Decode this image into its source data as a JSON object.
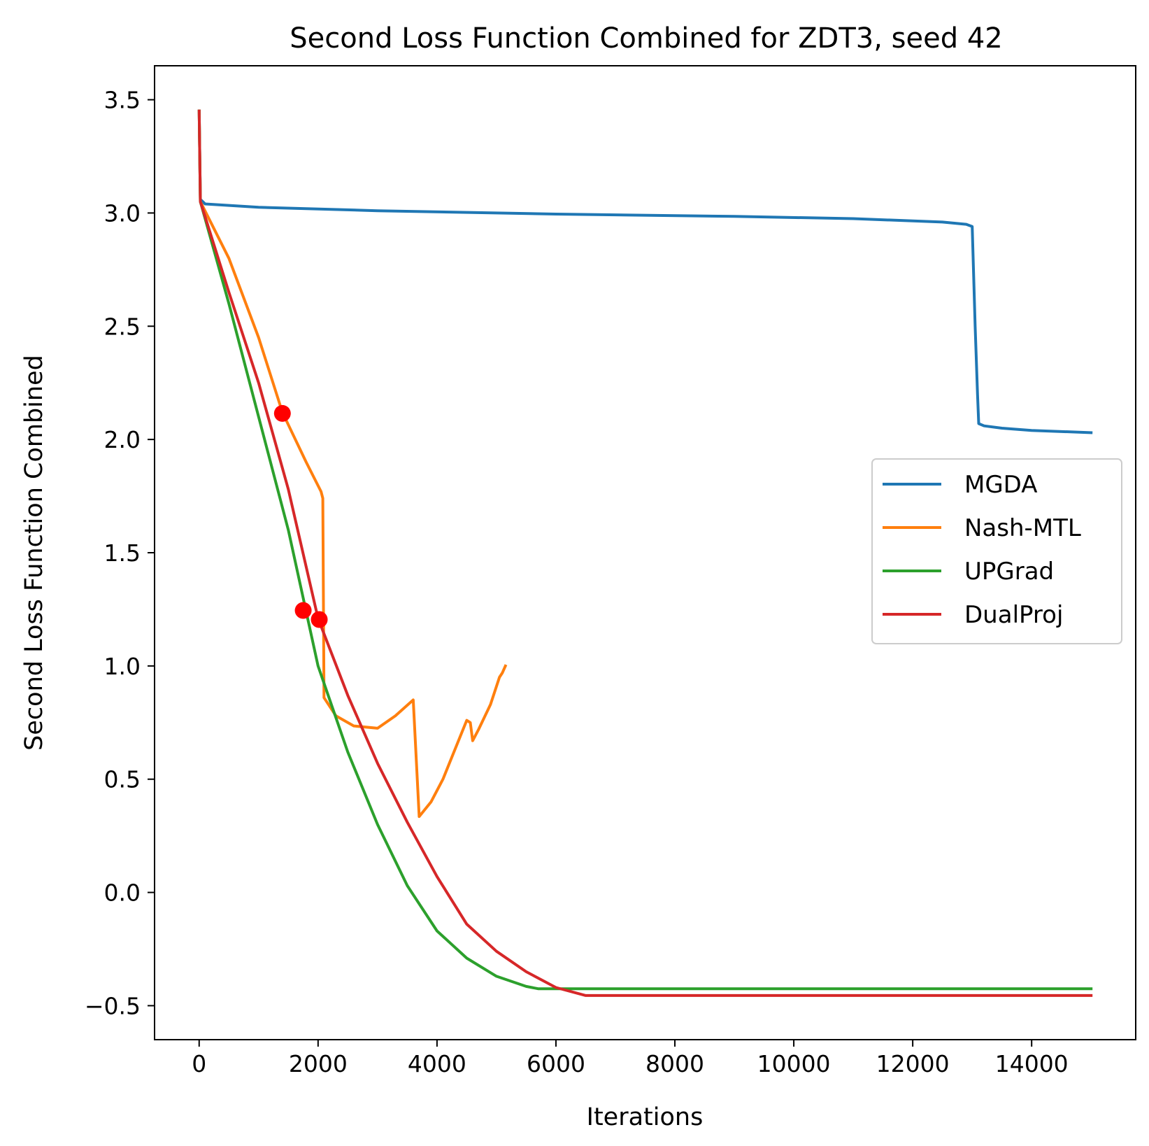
{
  "chart_data": {
    "type": "line",
    "title": "Second Loss Function Combined for ZDT3, seed 42",
    "xlabel": "Iterations",
    "ylabel": "Second Loss Function Combined",
    "xlim": [
      -750,
      15750
    ],
    "ylim": [
      -0.65,
      3.65
    ],
    "xticks": [
      {
        "value": 0,
        "label": "0"
      },
      {
        "value": 2000,
        "label": "2000"
      },
      {
        "value": 4000,
        "label": "4000"
      },
      {
        "value": 6000,
        "label": "6000"
      },
      {
        "value": 8000,
        "label": "8000"
      },
      {
        "value": 10000,
        "label": "10000"
      },
      {
        "value": 12000,
        "label": "12000"
      },
      {
        "value": 14000,
        "label": "14000"
      }
    ],
    "yticks": [
      {
        "value": -0.5,
        "label": "−0.5"
      },
      {
        "value": 0.0,
        "label": "0.0"
      },
      {
        "value": 0.5,
        "label": "0.5"
      },
      {
        "value": 1.0,
        "label": "1.0"
      },
      {
        "value": 1.5,
        "label": "1.5"
      },
      {
        "value": 2.0,
        "label": "2.0"
      },
      {
        "value": 2.5,
        "label": "2.5"
      },
      {
        "value": 3.0,
        "label": "3.0"
      },
      {
        "value": 3.5,
        "label": "3.5"
      }
    ],
    "grid": false,
    "legend_position": "center-right",
    "series": [
      {
        "name": "MGDA",
        "color": "#1f77b4",
        "points": [
          [
            0,
            3.45
          ],
          [
            20,
            3.06
          ],
          [
            100,
            3.04
          ],
          [
            1000,
            3.025
          ],
          [
            3000,
            3.01
          ],
          [
            6000,
            2.995
          ],
          [
            9000,
            2.985
          ],
          [
            11000,
            2.975
          ],
          [
            12500,
            2.96
          ],
          [
            12900,
            2.95
          ],
          [
            13000,
            2.94
          ],
          [
            13050,
            2.5
          ],
          [
            13090,
            2.2
          ],
          [
            13110,
            2.07
          ],
          [
            13200,
            2.06
          ],
          [
            13500,
            2.05
          ],
          [
            14000,
            2.04
          ],
          [
            15000,
            2.03
          ]
        ]
      },
      {
        "name": "Nash-MTL",
        "color": "#ff7f0e",
        "points": [
          [
            0,
            3.45
          ],
          [
            20,
            3.05
          ],
          [
            500,
            2.8
          ],
          [
            1000,
            2.45
          ],
          [
            1400,
            2.12
          ],
          [
            1800,
            1.9
          ],
          [
            2050,
            1.77
          ],
          [
            2080,
            1.74
          ],
          [
            2100,
            0.86
          ],
          [
            2300,
            0.78
          ],
          [
            2600,
            0.735
          ],
          [
            3000,
            0.725
          ],
          [
            3300,
            0.78
          ],
          [
            3600,
            0.85
          ],
          [
            3700,
            0.335
          ],
          [
            3900,
            0.4
          ],
          [
            4100,
            0.5
          ],
          [
            4300,
            0.63
          ],
          [
            4500,
            0.76
          ],
          [
            4560,
            0.75
          ],
          [
            4600,
            0.67
          ],
          [
            4700,
            0.72
          ],
          [
            4900,
            0.83
          ],
          [
            5050,
            0.95
          ],
          [
            5100,
            0.97
          ],
          [
            5150,
            1.0
          ]
        ]
      },
      {
        "name": "UPGrad",
        "color": "#2ca02c",
        "points": [
          [
            0,
            3.45
          ],
          [
            20,
            3.05
          ],
          [
            500,
            2.6
          ],
          [
            1000,
            2.1
          ],
          [
            1500,
            1.6
          ],
          [
            2000,
            1.0
          ],
          [
            2500,
            0.62
          ],
          [
            3000,
            0.3
          ],
          [
            3500,
            0.03
          ],
          [
            4000,
            -0.17
          ],
          [
            4500,
            -0.29
          ],
          [
            5000,
            -0.37
          ],
          [
            5500,
            -0.415
          ],
          [
            5700,
            -0.425
          ],
          [
            6000,
            -0.425
          ],
          [
            9000,
            -0.425
          ],
          [
            12000,
            -0.425
          ],
          [
            15000,
            -0.425
          ]
        ]
      },
      {
        "name": "DualProj",
        "color": "#d62728",
        "points": [
          [
            0,
            3.45
          ],
          [
            20,
            3.05
          ],
          [
            500,
            2.65
          ],
          [
            1000,
            2.25
          ],
          [
            1500,
            1.78
          ],
          [
            2000,
            1.21
          ],
          [
            2500,
            0.87
          ],
          [
            3000,
            0.57
          ],
          [
            3500,
            0.31
          ],
          [
            4000,
            0.07
          ],
          [
            4500,
            -0.14
          ],
          [
            5000,
            -0.26
          ],
          [
            5500,
            -0.35
          ],
          [
            6000,
            -0.42
          ],
          [
            6500,
            -0.455
          ],
          [
            9000,
            -0.455
          ],
          [
            12000,
            -0.455
          ],
          [
            15000,
            -0.455
          ]
        ]
      }
    ],
    "markers": [
      {
        "x": 1400,
        "y": 2.115,
        "color": "#ff0000"
      },
      {
        "x": 1750,
        "y": 1.245,
        "color": "#ff0000"
      },
      {
        "x": 2020,
        "y": 1.205,
        "color": "#ff0000"
      }
    ]
  }
}
